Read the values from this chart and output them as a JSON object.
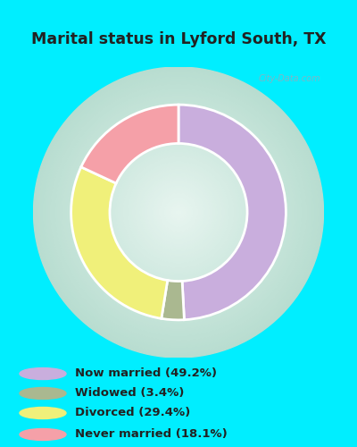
{
  "title": "Marital status in Lyford South, TX",
  "slices": [
    49.2,
    3.4,
    29.4,
    18.1
  ],
  "labels": [
    "Now married (49.2%)",
    "Widowed (3.4%)",
    "Divorced (29.4%)",
    "Never married (18.1%)"
  ],
  "colors": [
    "#c9aedd",
    "#aab890",
    "#f0f07a",
    "#f5a0a8"
  ],
  "bg_color_outer": "#00eeff",
  "bg_color_chart_edge": "#b8ddd0",
  "bg_color_chart_center": "#e8f5f0",
  "title_color": "#222222",
  "legend_text_color": "#222222",
  "watermark": "City-Data.com",
  "figsize": [
    4.0,
    5.0
  ],
  "dpi": 100
}
